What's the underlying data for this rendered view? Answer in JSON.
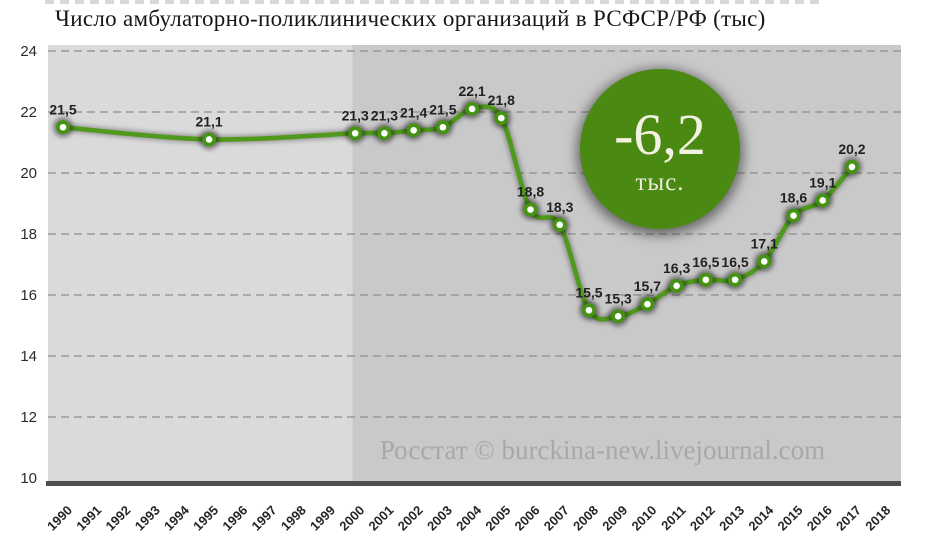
{
  "page": {
    "title": "Число амбулаторно-поликлинических организаций в РСФСР/РФ (тыс)",
    "watermark": "Росстат © burckina-new.livejournal.com"
  },
  "annotation": {
    "value": "-6,2",
    "unit": "тыс."
  },
  "colors": {
    "line": "#4f9a1c",
    "marker_fill": "#ffffff",
    "marker_ring": "#459312",
    "annotation_circle": "#4a8a12",
    "annotation_text": "#f3f2e2",
    "plot_bg_left": "#dadada",
    "plot_bg_right": "#c9c9c9",
    "gridline": "#8d8d8d",
    "axis_bar": "#4f4f4f",
    "data_label": "#222222",
    "tick_label": "#262626",
    "watermark_text": "#a8a8a8",
    "title_text": "#161616"
  },
  "chart_data": {
    "type": "line",
    "title": "Число амбулаторно-поликлинических организаций в РСФСР/РФ (тыс)",
    "x": [
      1990,
      1995,
      2000,
      2001,
      2002,
      2003,
      2004,
      2005,
      2006,
      2007,
      2008,
      2009,
      2010,
      2011,
      2012,
      2013,
      2014,
      2015,
      2016,
      2017
    ],
    "values": [
      21.5,
      21.1,
      21.3,
      21.3,
      21.4,
      21.5,
      22.1,
      21.8,
      18.8,
      18.3,
      15.5,
      15.3,
      15.7,
      16.3,
      16.5,
      16.5,
      17.1,
      18.6,
      19.1,
      20.2
    ],
    "point_labels": [
      "21,5",
      "21,1",
      "21,3",
      "21,3",
      "21,4",
      "21,5",
      "22,1",
      "21,8",
      "18,8",
      "18,3",
      "15,5",
      "15,3",
      "15,7",
      "16,3",
      "16,5",
      "16,5",
      "17,1",
      "18,6",
      "19,1",
      "20,2"
    ],
    "x_ticks": [
      "1990",
      "1991",
      "1992",
      "1993",
      "1994",
      "1995",
      "1996",
      "1997",
      "1998",
      "1999",
      "2000",
      "2001",
      "2002",
      "2003",
      "2004",
      "2005",
      "2006",
      "2007",
      "2008",
      "2009",
      "2010",
      "2011",
      "2012",
      "2013",
      "2014",
      "2015",
      "2016",
      "2017",
      "2018"
    ],
    "y_ticks": [
      24,
      22,
      20,
      18,
      16,
      14,
      12,
      10
    ],
    "ylim": [
      10,
      24
    ],
    "xlim": [
      1990,
      2018
    ],
    "grid": "horizontal-dashed",
    "legend": "none",
    "line_style": "smooth",
    "annotation": "-6,2 тыс.",
    "shaded_region": {
      "from": 2000,
      "to": 2018
    },
    "source": "Росстат © burckina-new.livejournal.com"
  }
}
